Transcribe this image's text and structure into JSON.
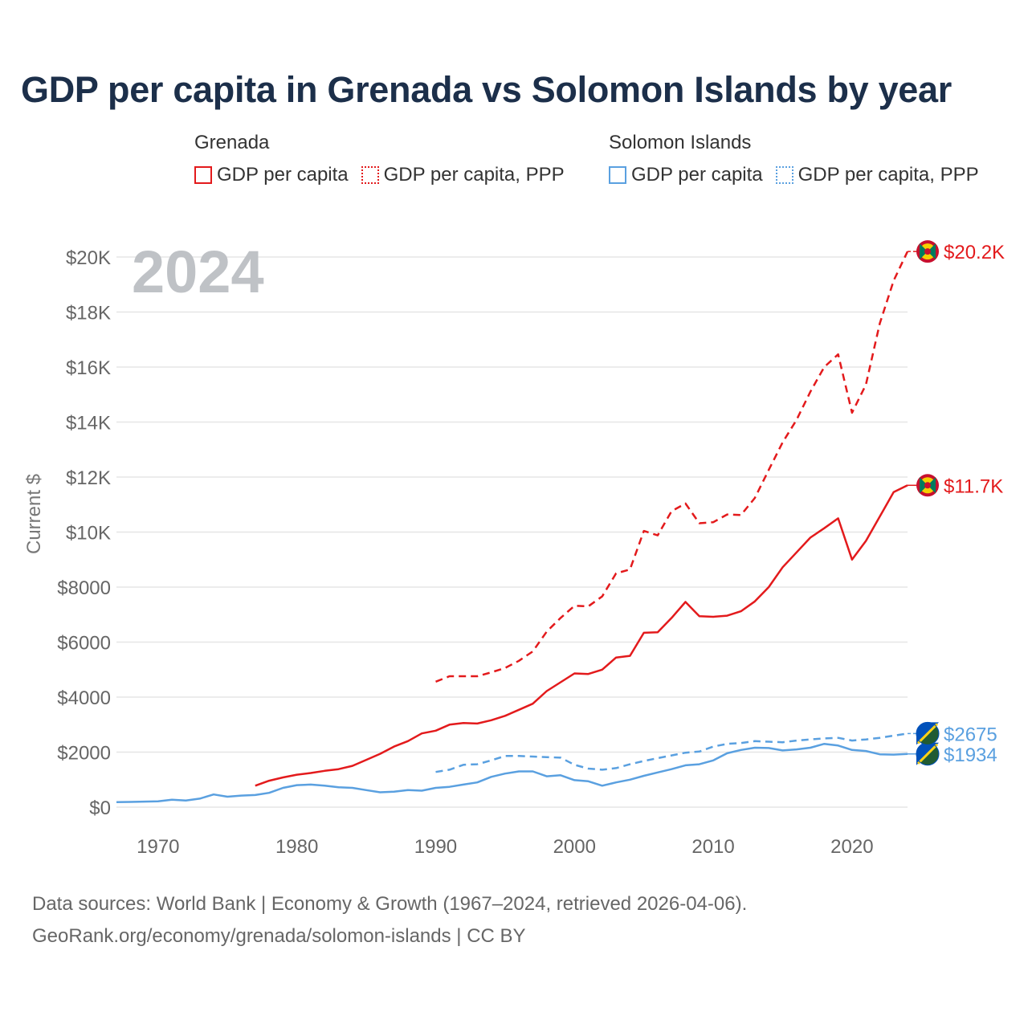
{
  "title": "GDP per capita in Grenada vs Solomon Islands by year",
  "year_label": "2024",
  "legend": {
    "groups": [
      {
        "name": "Grenada",
        "color": "#e31a1c",
        "items": [
          "GDP per capita",
          "GDP per capita, PPP"
        ]
      },
      {
        "name": "Solomon Islands",
        "color": "#5aa0e0",
        "items": [
          "GDP per capita",
          "GDP per capita, PPP"
        ]
      }
    ]
  },
  "footer": {
    "line1": "Data sources: World Bank | Economy & Growth (1967–2024, retrieved 2026-04-06).",
    "line2": "GeoRank.org/economy/grenada/solomon-islands | CC BY"
  },
  "chart_data": {
    "type": "line",
    "title": "GDP per capita in Grenada vs Solomon Islands by year",
    "ylabel": "Current $",
    "xlabel": "",
    "xlim": [
      1967,
      2024
    ],
    "ylim": [
      0,
      20000
    ],
    "x_ticks": [
      1970,
      1980,
      1990,
      2000,
      2010,
      2020
    ],
    "x_tick_labels": [
      "1970",
      "1980",
      "1990",
      "2000",
      "2010",
      "2020"
    ],
    "y_ticks": [
      0,
      2000,
      4000,
      6000,
      8000,
      10000,
      12000,
      14000,
      16000,
      18000,
      20000
    ],
    "y_tick_labels": [
      "$0",
      "$2000",
      "$4000",
      "$6000",
      "$8000",
      "$10K",
      "$12K",
      "$14K",
      "$16K",
      "$18K",
      "$20K"
    ],
    "grid": true,
    "series": [
      {
        "name": "Grenada GDP per capita",
        "country": "Grenada",
        "color": "#e31a1c",
        "dash": "solid",
        "end_label": "$11.7K",
        "x": [
          1977,
          1978,
          1979,
          1980,
          1981,
          1982,
          1983,
          1984,
          1985,
          1986,
          1987,
          1988,
          1989,
          1990,
          1991,
          1992,
          1993,
          1994,
          1995,
          1996,
          1997,
          1998,
          1999,
          2000,
          2001,
          2002,
          2003,
          2004,
          2005,
          2006,
          2007,
          2008,
          2009,
          2010,
          2011,
          2012,
          2013,
          2014,
          2015,
          2016,
          2017,
          2018,
          2019,
          2020,
          2021,
          2022,
          2023,
          2024
        ],
        "values": [
          780,
          960,
          1080,
          1180,
          1240,
          1320,
          1380,
          1500,
          1720,
          1940,
          2200,
          2400,
          2680,
          2780,
          3000,
          3060,
          3040,
          3160,
          3320,
          3540,
          3760,
          4220,
          4540,
          4860,
          4840,
          5000,
          5440,
          5500,
          6340,
          6360,
          6880,
          7460,
          6940,
          6920,
          6960,
          7120,
          7480,
          8000,
          8720,
          9260,
          9800,
          10140,
          10500,
          9000,
          9680,
          10560,
          11450,
          11700
        ]
      },
      {
        "name": "Grenada GDP per capita, PPP",
        "country": "Grenada",
        "color": "#e31a1c",
        "dash": "dashed",
        "end_label": "$20.2K",
        "x": [
          1990,
          1991,
          1992,
          1993,
          1994,
          1995,
          1996,
          1997,
          1998,
          1999,
          2000,
          2001,
          2002,
          2003,
          2004,
          2005,
          2006,
          2007,
          2008,
          2009,
          2010,
          2011,
          2012,
          2013,
          2014,
          2015,
          2016,
          2017,
          2018,
          2019,
          2020,
          2021,
          2022,
          2023,
          2024
        ],
        "values": [
          4560,
          4760,
          4760,
          4760,
          4900,
          5060,
          5320,
          5660,
          6380,
          6880,
          7320,
          7300,
          7660,
          8500,
          8640,
          10040,
          9880,
          10760,
          11040,
          10320,
          10360,
          10640,
          10620,
          11240,
          12260,
          13260,
          14080,
          15100,
          16000,
          16460,
          14340,
          15360,
          17580,
          19140,
          20200
        ]
      },
      {
        "name": "Solomon Islands GDP per capita",
        "country": "Solomon Islands",
        "color": "#5aa0e0",
        "dash": "solid",
        "end_label": "$1934",
        "x": [
          1967,
          1968,
          1969,
          1970,
          1971,
          1972,
          1973,
          1974,
          1975,
          1976,
          1977,
          1978,
          1979,
          1980,
          1981,
          1982,
          1983,
          1984,
          1985,
          1986,
          1987,
          1988,
          1989,
          1990,
          1991,
          1992,
          1993,
          1994,
          1995,
          1996,
          1997,
          1998,
          1999,
          2000,
          2001,
          2002,
          2003,
          2004,
          2005,
          2006,
          2007,
          2008,
          2009,
          2010,
          2011,
          2012,
          2013,
          2014,
          2015,
          2016,
          2017,
          2018,
          2019,
          2020,
          2021,
          2022,
          2023,
          2024
        ],
        "values": [
          180,
          190,
          200,
          210,
          270,
          240,
          310,
          460,
          380,
          420,
          440,
          520,
          700,
          800,
          820,
          780,
          720,
          700,
          620,
          540,
          560,
          620,
          600,
          700,
          740,
          820,
          900,
          1100,
          1220,
          1300,
          1300,
          1120,
          1160,
          980,
          940,
          780,
          900,
          1000,
          1140,
          1260,
          1380,
          1520,
          1560,
          1700,
          1960,
          2080,
          2160,
          2150,
          2060,
          2100,
          2160,
          2300,
          2240,
          2080,
          2040,
          1920,
          1910,
          1934
        ]
      },
      {
        "name": "Solomon Islands GDP per capita, PPP",
        "country": "Solomon Islands",
        "color": "#5aa0e0",
        "dash": "dashed",
        "end_label": "$2675",
        "x": [
          1990,
          1991,
          1992,
          1993,
          1994,
          1995,
          1996,
          1997,
          1998,
          1999,
          2000,
          2001,
          2002,
          2003,
          2004,
          2005,
          2006,
          2007,
          2008,
          2009,
          2010,
          2011,
          2012,
          2013,
          2014,
          2015,
          2016,
          2017,
          2018,
          2019,
          2020,
          2021,
          2022,
          2023,
          2024
        ],
        "values": [
          1280,
          1360,
          1540,
          1560,
          1700,
          1860,
          1860,
          1840,
          1820,
          1800,
          1540,
          1400,
          1360,
          1420,
          1560,
          1680,
          1780,
          1880,
          1980,
          2020,
          2200,
          2300,
          2330,
          2400,
          2380,
          2360,
          2420,
          2460,
          2500,
          2520,
          2420,
          2460,
          2520,
          2600,
          2675
        ]
      }
    ]
  }
}
